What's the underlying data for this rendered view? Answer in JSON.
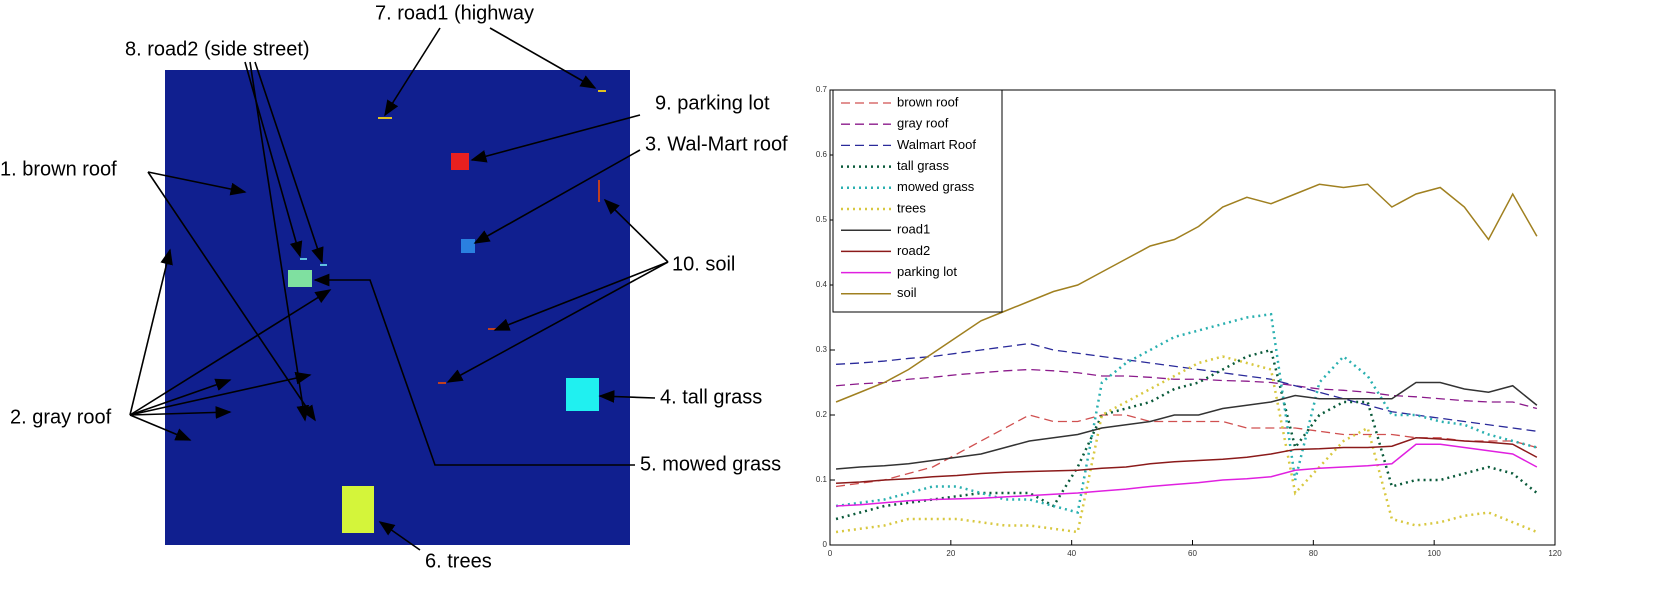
{
  "annotations": [
    "7. road1 (highway",
    "8. road2 (side street)",
    "9. parking lot",
    "3. Wal-Mart roof",
    "1. brown roof",
    "10. soil",
    "4. tall grass",
    "2. gray roof",
    "5. mowed grass",
    "6. trees"
  ],
  "chart_data": {
    "type": "line",
    "x": [
      1,
      5,
      9,
      13,
      17,
      21,
      25,
      29,
      33,
      37,
      41,
      45,
      49,
      53,
      57,
      61,
      65,
      69,
      73,
      77,
      81,
      85,
      89,
      93,
      97,
      101,
      105,
      109,
      113,
      117
    ],
    "xlim": [
      0,
      120
    ],
    "xticks": [
      0,
      20,
      40,
      60,
      80,
      100,
      120
    ],
    "ylim": [
      0,
      0.7
    ],
    "yticks": [
      0,
      0.1,
      0.2,
      0.3,
      0.4,
      0.5,
      0.6,
      0.7
    ],
    "legend": "upper left",
    "series": [
      {
        "name": "brown roof",
        "color": "#d05050",
        "line_style": "dashed",
        "values": [
          0.09,
          0.095,
          0.1,
          0.11,
          0.12,
          0.14,
          0.16,
          0.18,
          0.2,
          0.19,
          0.19,
          0.2,
          0.2,
          0.19,
          0.19,
          0.19,
          0.19,
          0.18,
          0.18,
          0.18,
          0.175,
          0.17,
          0.17,
          0.17,
          0.165,
          0.165,
          0.16,
          0.16,
          0.16,
          0.15
        ]
      },
      {
        "name": "gray roof",
        "color": "#8b1a8b",
        "line_style": "dashed",
        "values": [
          0.245,
          0.248,
          0.25,
          0.255,
          0.258,
          0.262,
          0.265,
          0.268,
          0.27,
          0.268,
          0.265,
          0.26,
          0.26,
          0.258,
          0.255,
          0.255,
          0.253,
          0.252,
          0.25,
          0.245,
          0.24,
          0.238,
          0.235,
          0.23,
          0.228,
          0.225,
          0.222,
          0.22,
          0.22,
          0.21
        ]
      },
      {
        "name": "Walmart Roof",
        "color": "#2a2a9a",
        "line_style": "dashed",
        "values": [
          0.278,
          0.28,
          0.283,
          0.287,
          0.29,
          0.295,
          0.3,
          0.305,
          0.31,
          0.3,
          0.295,
          0.29,
          0.285,
          0.28,
          0.275,
          0.27,
          0.265,
          0.26,
          0.255,
          0.245,
          0.235,
          0.225,
          0.215,
          0.205,
          0.2,
          0.195,
          0.19,
          0.185,
          0.18,
          0.175
        ]
      },
      {
        "name": "tall grass",
        "color": "#0a5a3a",
        "line_style": "dotted",
        "values": [
          0.04,
          0.05,
          0.06,
          0.065,
          0.07,
          0.075,
          0.08,
          0.08,
          0.08,
          0.06,
          0.12,
          0.2,
          0.21,
          0.22,
          0.24,
          0.25,
          0.27,
          0.29,
          0.3,
          0.15,
          0.2,
          0.22,
          0.22,
          0.09,
          0.1,
          0.1,
          0.11,
          0.12,
          0.11,
          0.08
        ]
      },
      {
        "name": "mowed grass",
        "color": "#2ab0b0",
        "line_style": "dotted",
        "values": [
          0.06,
          0.065,
          0.07,
          0.08,
          0.09,
          0.09,
          0.08,
          0.07,
          0.07,
          0.06,
          0.05,
          0.25,
          0.28,
          0.3,
          0.32,
          0.33,
          0.34,
          0.35,
          0.355,
          0.1,
          0.25,
          0.29,
          0.26,
          0.2,
          0.2,
          0.19,
          0.185,
          0.17,
          0.16,
          0.15
        ]
      },
      {
        "name": "trees",
        "color": "#d8c840",
        "line_style": "dotted",
        "values": [
          0.02,
          0.025,
          0.03,
          0.04,
          0.04,
          0.04,
          0.035,
          0.03,
          0.03,
          0.025,
          0.02,
          0.2,
          0.22,
          0.24,
          0.26,
          0.28,
          0.29,
          0.28,
          0.27,
          0.08,
          0.12,
          0.16,
          0.18,
          0.04,
          0.03,
          0.035,
          0.045,
          0.05,
          0.035,
          0.02
        ]
      },
      {
        "name": "road1",
        "color": "#333333",
        "line_style": "solid",
        "values": [
          0.117,
          0.12,
          0.122,
          0.125,
          0.13,
          0.135,
          0.14,
          0.15,
          0.16,
          0.165,
          0.17,
          0.18,
          0.185,
          0.19,
          0.2,
          0.2,
          0.21,
          0.215,
          0.22,
          0.23,
          0.225,
          0.225,
          0.225,
          0.225,
          0.25,
          0.25,
          0.24,
          0.235,
          0.245,
          0.215
        ]
      },
      {
        "name": "road2",
        "color": "#8b1a1a",
        "line_style": "solid",
        "values": [
          0.095,
          0.097,
          0.1,
          0.102,
          0.105,
          0.107,
          0.11,
          0.112,
          0.113,
          0.114,
          0.115,
          0.118,
          0.12,
          0.125,
          0.128,
          0.13,
          0.132,
          0.135,
          0.14,
          0.147,
          0.148,
          0.15,
          0.15,
          0.152,
          0.165,
          0.163,
          0.16,
          0.158,
          0.155,
          0.135
        ]
      },
      {
        "name": "parking lot",
        "color": "#e020e0",
        "line_style": "solid",
        "values": [
          0.06,
          0.062,
          0.065,
          0.068,
          0.07,
          0.071,
          0.072,
          0.074,
          0.076,
          0.078,
          0.08,
          0.083,
          0.086,
          0.09,
          0.093,
          0.096,
          0.1,
          0.102,
          0.105,
          0.115,
          0.118,
          0.12,
          0.122,
          0.125,
          0.155,
          0.155,
          0.15,
          0.145,
          0.14,
          0.12
        ]
      },
      {
        "name": "soil",
        "color": "#a08020",
        "line_style": "solid",
        "values": [
          0.22,
          0.235,
          0.25,
          0.27,
          0.295,
          0.32,
          0.345,
          0.36,
          0.375,
          0.39,
          0.4,
          0.42,
          0.44,
          0.46,
          0.47,
          0.49,
          0.52,
          0.535,
          0.525,
          0.54,
          0.555,
          0.55,
          0.555,
          0.52,
          0.54,
          0.55,
          0.52,
          0.47,
          0.54,
          0.475
        ]
      }
    ]
  }
}
